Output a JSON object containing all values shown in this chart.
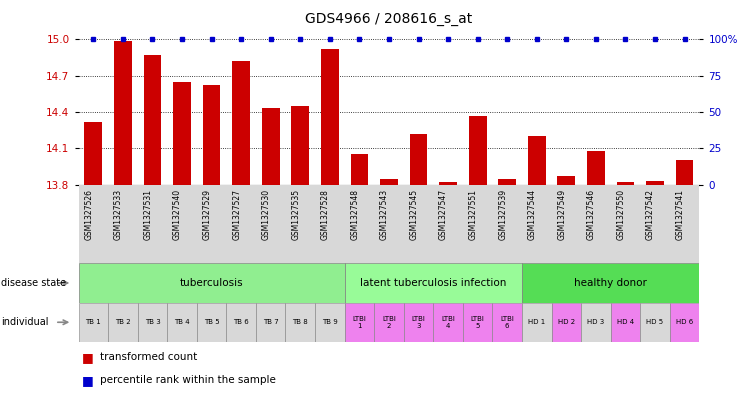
{
  "title": "GDS4966 / 208616_s_at",
  "sample_ids": [
    "GSM1327526",
    "GSM1327533",
    "GSM1327531",
    "GSM1327540",
    "GSM1327529",
    "GSM1327527",
    "GSM1327530",
    "GSM1327535",
    "GSM1327528",
    "GSM1327548",
    "GSM1327543",
    "GSM1327545",
    "GSM1327547",
    "GSM1327551",
    "GSM1327539",
    "GSM1327544",
    "GSM1327549",
    "GSM1327546",
    "GSM1327550",
    "GSM1327542",
    "GSM1327541"
  ],
  "bar_values": [
    14.32,
    14.99,
    14.87,
    14.65,
    14.62,
    14.82,
    14.43,
    14.45,
    14.92,
    14.05,
    13.85,
    14.22,
    13.82,
    14.37,
    13.85,
    14.2,
    13.87,
    14.08,
    13.82,
    13.83,
    14.0
  ],
  "ymin": 13.8,
  "ymax": 15.0,
  "yticks": [
    13.8,
    14.1,
    14.4,
    14.7,
    15.0
  ],
  "y2min": 0,
  "y2max": 100,
  "y2ticks": [
    0,
    25,
    50,
    75,
    100
  ],
  "disease_state_groups": [
    {
      "label": "tuberculosis",
      "start": 0,
      "end": 9,
      "color": "#90EE90"
    },
    {
      "label": "latent tuberculosis infection",
      "start": 9,
      "end": 15,
      "color": "#98FB98"
    },
    {
      "label": "healthy donor",
      "start": 15,
      "end": 21,
      "color": "#55DD55"
    }
  ],
  "individual_labels": [
    "TB 1",
    "TB 2",
    "TB 3",
    "TB 4",
    "TB 5",
    "TB 6",
    "TB 7",
    "TB 8",
    "TB 9",
    "LTBI\n1",
    "LTBI\n2",
    "LTBI\n3",
    "LTBI\n4",
    "LTBI\n5",
    "LTBI\n6",
    "HD 1",
    "HD 2",
    "HD 3",
    "HD 4",
    "HD 5",
    "HD 6"
  ],
  "individual_colors": [
    "#D8D8D8",
    "#D8D8D8",
    "#D8D8D8",
    "#D8D8D8",
    "#D8D8D8",
    "#D8D8D8",
    "#D8D8D8",
    "#D8D8D8",
    "#D8D8D8",
    "#EE82EE",
    "#EE82EE",
    "#EE82EE",
    "#EE82EE",
    "#EE82EE",
    "#EE82EE",
    "#D8D8D8",
    "#EE82EE",
    "#D8D8D8",
    "#EE82EE",
    "#D8D8D8",
    "#EE82EE"
  ],
  "bar_color": "#CC0000",
  "percentile_color": "#0000CC",
  "left_label_color": "#CC0000",
  "right_label_color": "#0000CC",
  "tick_fontsize": 7.5,
  "title_fontsize": 10
}
